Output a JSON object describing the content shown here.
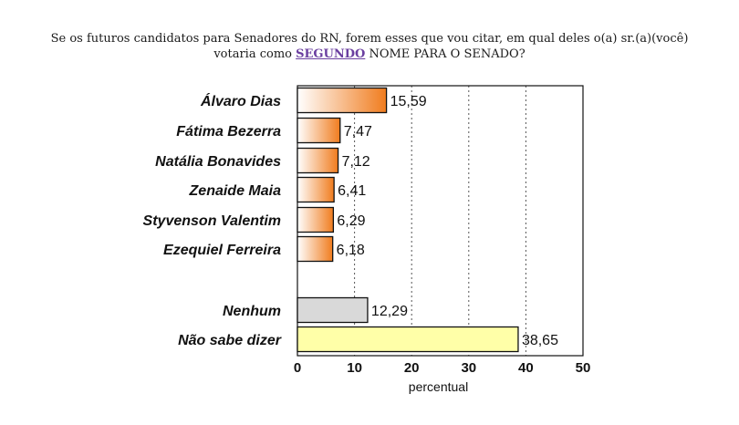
{
  "question": {
    "line1": "Se os futuros candidatos para Senadores do RN, forem esses que vou citar, em qual deles o(a) sr.(a)(você)",
    "line2_before": "votaria como ",
    "line2_emph": "SEGUNDO",
    "line2_after": " NOME PARA O SENADO?"
  },
  "chart_data": {
    "type": "bar",
    "orientation": "horizontal",
    "categories": [
      "Álvaro Dias",
      "Fátima Bezerra",
      "Natália Bonavides",
      "Zenaide Maia",
      "Styvenson Valentim",
      "Ezequiel Ferreira",
      "Nenhum",
      "Não sabe dizer"
    ],
    "values": [
      15.59,
      7.47,
      7.12,
      6.41,
      6.29,
      6.18,
      12.29,
      38.65
    ],
    "value_labels": [
      "15,59",
      "7,47",
      "7,12",
      "6,41",
      "6,29",
      "6,18",
      "12,29",
      "38,65"
    ],
    "xlabel": "percentual",
    "xlim": [
      0,
      50
    ],
    "xticks": [
      "0",
      "10",
      "20",
      "30",
      "40",
      "50"
    ],
    "grid": "vertical dashed",
    "colors": {
      "candidate_start": "#ffffff",
      "candidate_end": "#f07c1e",
      "nenhum": "#d9d9d9",
      "nao_sabe": "#ffffa8",
      "edge": "#111111",
      "grid": "#555555"
    }
  }
}
